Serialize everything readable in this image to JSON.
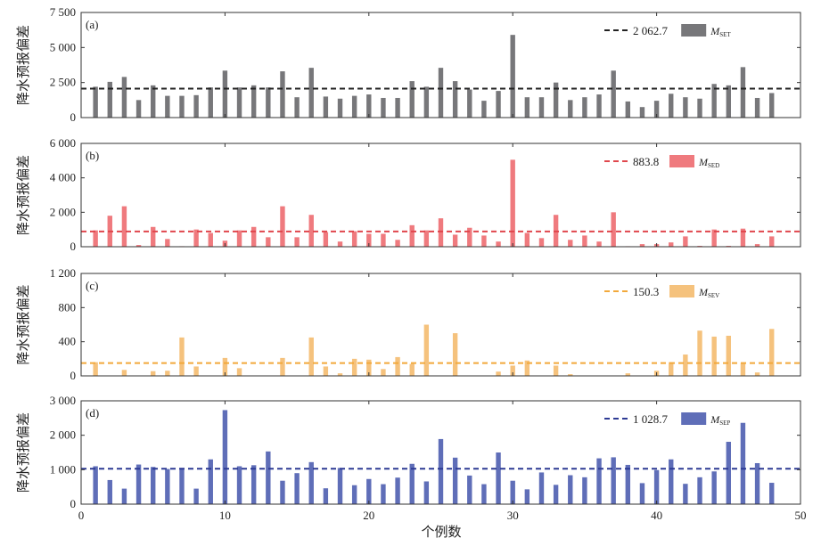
{
  "xlabel": "个例数",
  "x_ticks": [
    "0",
    "10",
    "20",
    "30",
    "40",
    "50"
  ],
  "chart_data": [
    {
      "type": "bar",
      "panel_label": "(a)",
      "ylabel": "降水预报偏差",
      "ylim": [
        0,
        7500
      ],
      "y_ticks": [
        0,
        2500,
        5000,
        7500
      ],
      "y_tick_labels": [
        "0",
        "2 500",
        "5 000",
        "7 500"
      ],
      "xlim": [
        0,
        50
      ],
      "color": "#77777a",
      "mean": 2062.7,
      "mean_label": "2 062.7",
      "mean_color": "#222222",
      "legend": {
        "m": "M",
        "sub": "SET"
      },
      "x": [
        1,
        2,
        3,
        4,
        5,
        6,
        7,
        8,
        9,
        10,
        11,
        12,
        13,
        14,
        15,
        16,
        17,
        18,
        19,
        20,
        21,
        22,
        23,
        24,
        25,
        26,
        27,
        28,
        29,
        30,
        31,
        32,
        33,
        34,
        35,
        36,
        37,
        38,
        39,
        40,
        41,
        42,
        43,
        44,
        45,
        46,
        47,
        48
      ],
      "values": [
        2200,
        2550,
        2900,
        1250,
        2300,
        1550,
        1550,
        1600,
        2150,
        3350,
        2150,
        2300,
        2150,
        3300,
        1450,
        3550,
        1500,
        1350,
        1550,
        1650,
        1400,
        1400,
        2600,
        2200,
        3550,
        2600,
        2000,
        1200,
        1900,
        5900,
        1450,
        1450,
        2500,
        1250,
        1450,
        1650,
        3350,
        1150,
        750,
        1200,
        1700,
        1450,
        1350,
        2400,
        2300,
        3600,
        1400,
        1750
      ]
    },
    {
      "type": "bar",
      "panel_label": "(b)",
      "ylabel": "降水预报偏差",
      "ylim": [
        0,
        6000
      ],
      "y_ticks": [
        0,
        2000,
        4000,
        6000
      ],
      "y_tick_labels": [
        "0",
        "2 000",
        "4 000",
        "6 000"
      ],
      "xlim": [
        0,
        50
      ],
      "color": "#ef7a7e",
      "mean": 883.8,
      "mean_label": "883.8",
      "mean_color": "#e0474d",
      "legend": {
        "m": "M",
        "sub": "SED"
      },
      "x": [
        1,
        2,
        3,
        4,
        5,
        6,
        7,
        8,
        9,
        10,
        11,
        12,
        13,
        14,
        15,
        16,
        17,
        18,
        19,
        20,
        21,
        22,
        23,
        24,
        25,
        26,
        27,
        28,
        29,
        30,
        31,
        32,
        33,
        34,
        35,
        36,
        37,
        38,
        39,
        40,
        41,
        42,
        43,
        44,
        45,
        46,
        47,
        48
      ],
      "values": [
        950,
        1800,
        2350,
        100,
        1150,
        450,
        30,
        1000,
        800,
        350,
        950,
        1150,
        550,
        2350,
        550,
        1850,
        850,
        300,
        900,
        750,
        750,
        400,
        1250,
        950,
        1650,
        700,
        1100,
        650,
        300,
        5050,
        800,
        500,
        1850,
        400,
        650,
        300,
        2000,
        30,
        150,
        150,
        250,
        600,
        50,
        1000,
        50,
        1050,
        150,
        600
      ]
    },
    {
      "type": "bar",
      "panel_label": "(c)",
      "ylabel": "降水预报偏差",
      "ylim": [
        0,
        1200
      ],
      "y_ticks": [
        0,
        400,
        800,
        1200
      ],
      "y_tick_labels": [
        "0",
        "400",
        "800",
        "1 200"
      ],
      "xlim": [
        0,
        50
      ],
      "color": "#f5c27d",
      "mean": 150.3,
      "mean_label": "150.3",
      "mean_color": "#f2a93b",
      "legend": {
        "m": "M",
        "sub": "SEV"
      },
      "x": [
        1,
        2,
        3,
        4,
        5,
        6,
        7,
        8,
        9,
        10,
        11,
        12,
        13,
        14,
        15,
        16,
        17,
        18,
        19,
        20,
        21,
        22,
        23,
        24,
        25,
        26,
        27,
        28,
        29,
        30,
        31,
        32,
        33,
        34,
        35,
        36,
        37,
        38,
        39,
        40,
        41,
        42,
        43,
        44,
        45,
        46,
        47,
        48
      ],
      "values": [
        160,
        0,
        70,
        0,
        55,
        60,
        450,
        110,
        0,
        210,
        90,
        0,
        0,
        210,
        0,
        450,
        110,
        30,
        200,
        190,
        80,
        220,
        140,
        600,
        0,
        500,
        0,
        0,
        50,
        120,
        180,
        0,
        120,
        20,
        0,
        0,
        0,
        30,
        0,
        60,
        160,
        250,
        530,
        460,
        470,
        150,
        40,
        550
      ]
    },
    {
      "type": "bar",
      "panel_label": "(d)",
      "ylabel": "降水预报偏差",
      "ylim": [
        0,
        3000
      ],
      "y_ticks": [
        0,
        1000,
        2000,
        3000
      ],
      "y_tick_labels": [
        "0",
        "1 000",
        "2 000",
        "3 000"
      ],
      "xlim": [
        0,
        50
      ],
      "color": "#5f6eb8",
      "mean": 1028.7,
      "mean_label": "1 028.7",
      "mean_color": "#2d3a94",
      "legend": {
        "m": "M",
        "sub": "SEP"
      },
      "x": [
        1,
        2,
        3,
        4,
        5,
        6,
        7,
        8,
        9,
        10,
        11,
        12,
        13,
        14,
        15,
        16,
        17,
        18,
        19,
        20,
        21,
        22,
        23,
        24,
        25,
        26,
        27,
        28,
        29,
        30,
        31,
        32,
        33,
        34,
        35,
        36,
        37,
        38,
        39,
        40,
        41,
        42,
        43,
        44,
        45,
        46,
        47,
        48
      ],
      "values": [
        1100,
        700,
        450,
        1150,
        1080,
        1020,
        1050,
        450,
        1300,
        2730,
        1100,
        1130,
        1530,
        680,
        900,
        1220,
        460,
        1050,
        550,
        730,
        580,
        770,
        1170,
        660,
        1890,
        1350,
        830,
        580,
        1500,
        680,
        430,
        920,
        560,
        840,
        780,
        1330,
        1360,
        1140,
        610,
        990,
        1300,
        590,
        780,
        950,
        1810,
        2360,
        1190,
        620
      ]
    }
  ]
}
